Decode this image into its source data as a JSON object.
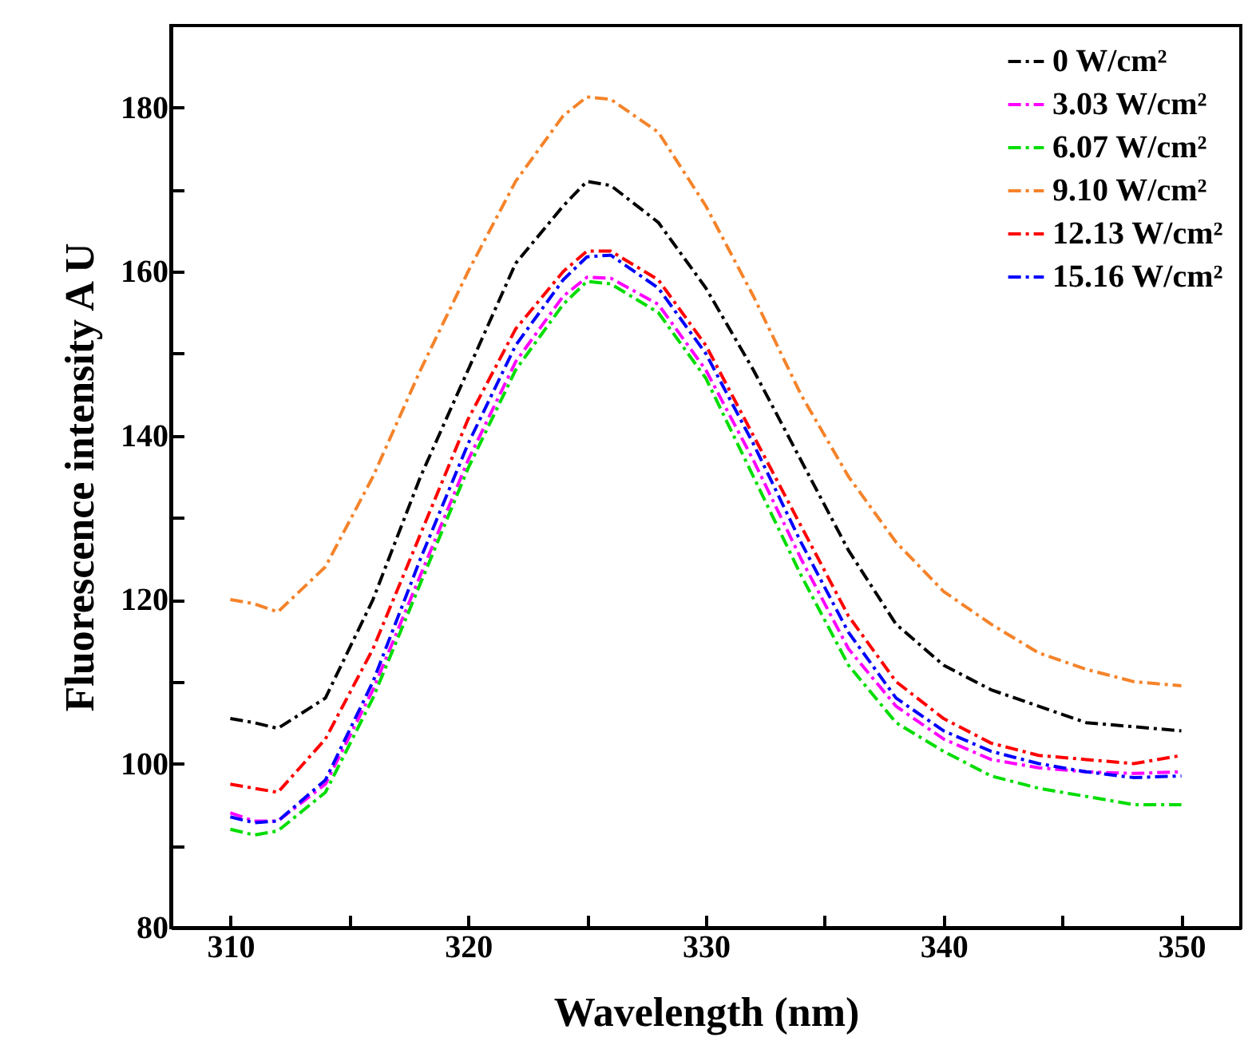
{
  "chart_data": {
    "type": "line",
    "xlabel": "Wavelength (nm)",
    "ylabel": "Fluorescence intensity A U",
    "x": [
      310,
      311,
      312,
      314,
      316,
      318,
      320,
      322,
      324,
      325,
      326,
      328,
      330,
      332,
      334,
      336,
      338,
      340,
      342,
      344,
      346,
      348,
      350
    ],
    "series": [
      {
        "name": "0 W/cm²",
        "color": "#000000",
        "values": [
          105.5,
          105,
          104.3,
          108,
          120,
          135,
          148,
          161,
          168,
          171,
          170.5,
          166,
          158,
          148,
          137,
          126,
          117,
          112,
          109,
          107,
          105,
          104.5,
          104
        ]
      },
      {
        "name": "3.03 W/cm²",
        "color": "#ff00ff",
        "values": [
          94,
          93,
          93,
          97.5,
          109,
          123,
          137,
          149,
          157,
          159.3,
          159.2,
          156,
          148,
          137,
          125,
          114,
          107,
          103,
          100.5,
          99.5,
          99,
          98.8,
          99
        ]
      },
      {
        "name": "6.07 W/cm²",
        "color": "#00dd00",
        "values": [
          92,
          91.3,
          91.8,
          96.5,
          108,
          122,
          136,
          148,
          156,
          158.8,
          158.5,
          155,
          147,
          135,
          123,
          112,
          105,
          101.5,
          98.5,
          97,
          96,
          95,
          95
        ]
      },
      {
        "name": "9.10 W/cm²",
        "color": "#f5832a",
        "values": [
          120,
          119.5,
          118.5,
          124,
          135,
          148,
          160,
          171,
          179,
          181.3,
          181,
          177,
          168,
          157,
          145,
          135,
          127,
          121,
          117,
          113.5,
          111.5,
          110,
          109.5
        ]
      },
      {
        "name": "12.13 W/cm²",
        "color": "#ff0000",
        "values": [
          97.5,
          97,
          96.5,
          103,
          114,
          128,
          142,
          153,
          160,
          162.5,
          162.5,
          159,
          151,
          140,
          129,
          118,
          110,
          105.5,
          102.5,
          101,
          100.5,
          100,
          101
        ]
      },
      {
        "name": "15.16 W/cm²",
        "color": "#0000ff",
        "values": [
          93.5,
          92.8,
          93,
          98,
          110,
          125,
          139,
          151,
          159,
          161.8,
          162,
          158,
          150,
          139,
          127,
          116,
          108,
          104,
          101.5,
          100,
          99,
          98.3,
          98.5
        ]
      }
    ],
    "xlim": [
      307.5,
      352.5
    ],
    "ylim": [
      80,
      190
    ],
    "xticks": [
      310,
      {
        "value": 315,
        "label": null
      },
      320,
      {
        "value": 325,
        "label": null
      },
      330,
      {
        "value": 335,
        "label": null
      },
      340,
      {
        "value": 345,
        "label": null
      },
      350
    ],
    "yticks": [
      80,
      {
        "value": 90,
        "label": null
      },
      100,
      {
        "value": 110,
        "label": null
      },
      120,
      {
        "value": 130,
        "label": null
      },
      140,
      {
        "value": 150,
        "label": null
      },
      160,
      {
        "value": 170,
        "label": null
      },
      180
    ],
    "legend": "top right",
    "line_style": "dashed",
    "grid": false
  }
}
